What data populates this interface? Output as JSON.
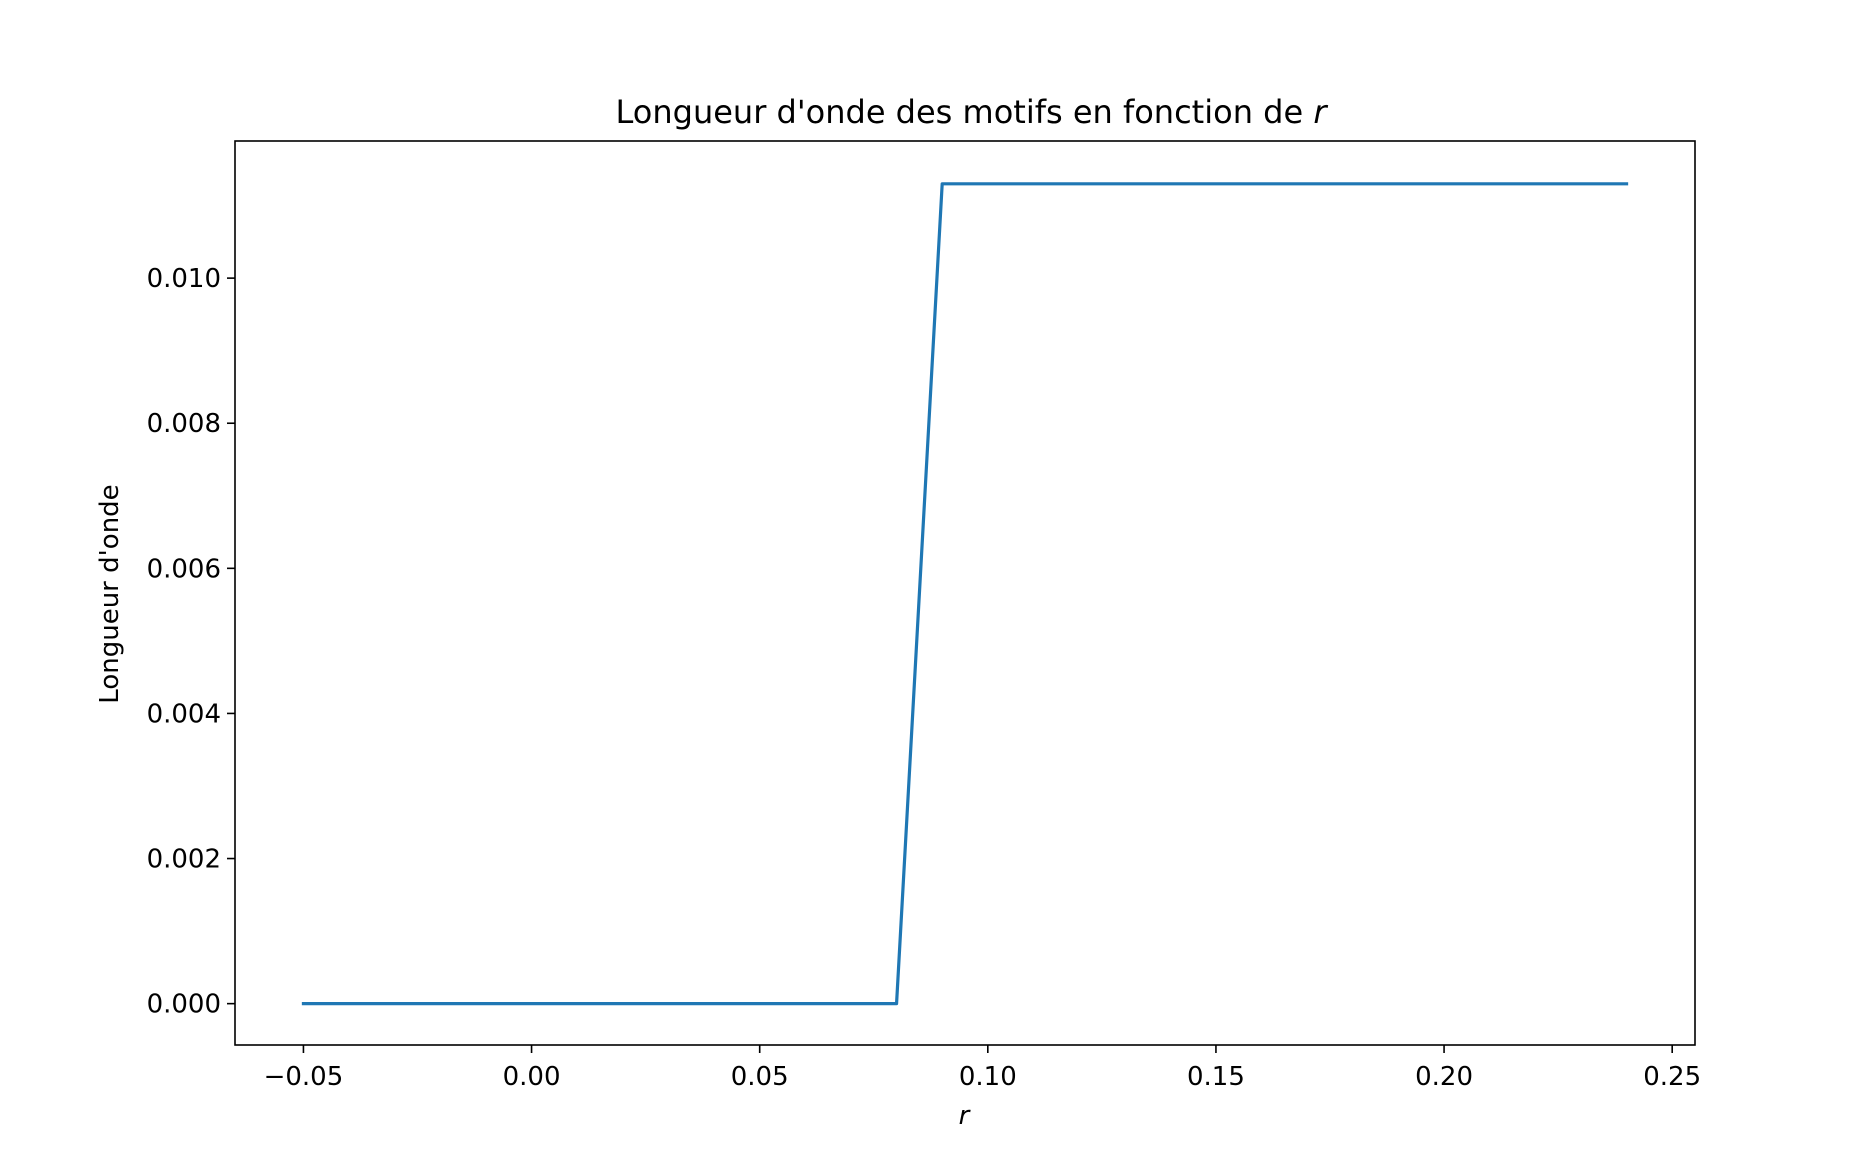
{
  "chart_data": {
    "type": "line",
    "title": "Longueur d'onde des motifs en fonction de ",
    "title_var": "r",
    "xlabel": "r",
    "ylabel": "Longueur d'onde",
    "xlim": [
      -0.065,
      0.255
    ],
    "ylim": [
      -0.00057,
      0.01189
    ],
    "xticks": [
      -0.05,
      0.0,
      0.05,
      0.1,
      0.15,
      0.2,
      0.25
    ],
    "xtick_labels": [
      "−0.05",
      "0.00",
      "0.05",
      "0.10",
      "0.15",
      "0.20",
      "0.25"
    ],
    "yticks": [
      0.0,
      0.002,
      0.004,
      0.006,
      0.008,
      0.01
    ],
    "ytick_labels": [
      "0.000",
      "0.002",
      "0.004",
      "0.006",
      "0.008",
      "0.010"
    ],
    "grid": false,
    "series": [
      {
        "color": "#1f77b4",
        "x": [
          -0.05,
          -0.04,
          -0.03,
          -0.02,
          -0.01,
          0.0,
          0.01,
          0.02,
          0.03,
          0.04,
          0.05,
          0.06,
          0.07,
          0.08,
          0.09,
          0.1,
          0.11,
          0.12,
          0.13,
          0.14,
          0.15,
          0.16,
          0.17,
          0.18,
          0.19,
          0.2,
          0.21,
          0.22,
          0.23,
          0.24
        ],
        "y": [
          0,
          0,
          0,
          0,
          0,
          0,
          0,
          0,
          0,
          0,
          0,
          0,
          0,
          0,
          0.0113,
          0.0113,
          0.0113,
          0.0113,
          0.0113,
          0.0113,
          0.0113,
          0.0113,
          0.0113,
          0.0113,
          0.0113,
          0.0113,
          0.0113,
          0.0113,
          0.0113,
          0.0113
        ]
      }
    ]
  }
}
